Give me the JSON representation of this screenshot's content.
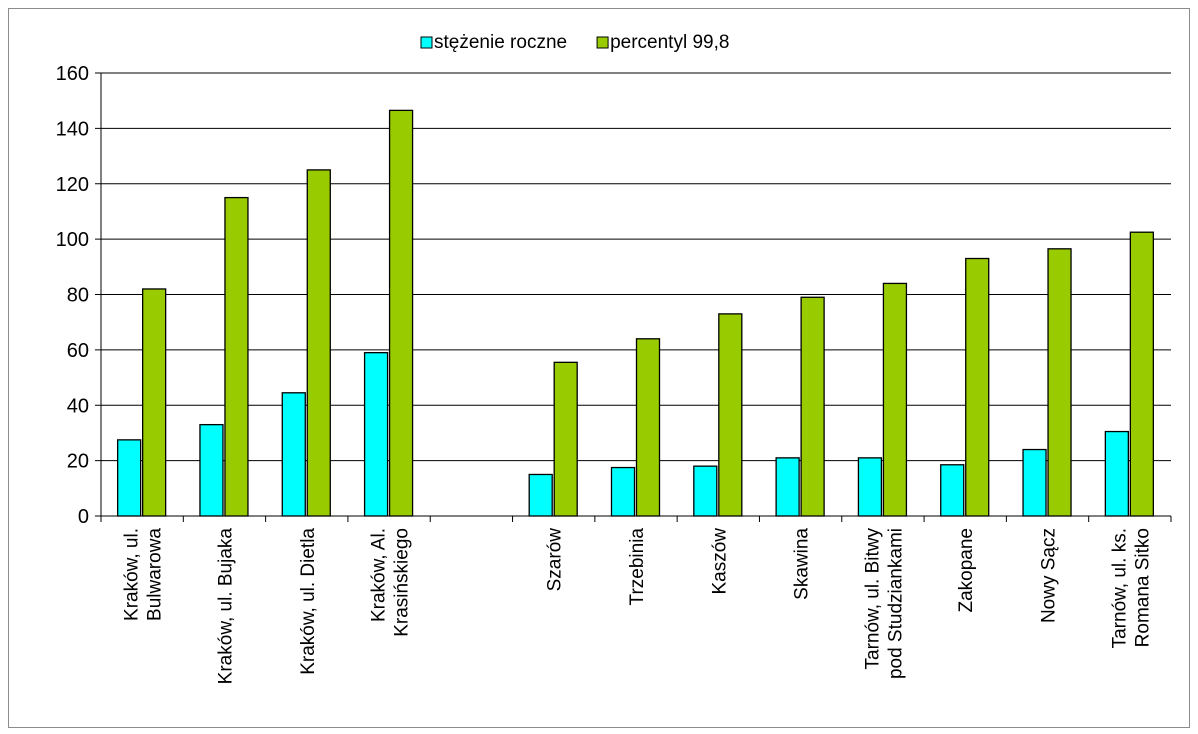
{
  "chart_data": {
    "type": "bar",
    "title": "",
    "xlabel": "",
    "ylabel": "",
    "ylim": [
      0,
      160
    ],
    "yticks": [
      0,
      20,
      40,
      60,
      80,
      100,
      120,
      140,
      160
    ],
    "grid": true,
    "legend_position": "top",
    "categories": [
      [
        "Kraków, ul.",
        "Bulwarowa"
      ],
      [
        "Kraków, ul. Bujaka"
      ],
      [
        "Kraków, ul. Dietla"
      ],
      [
        "Kraków, Al.",
        "Krasińskiego"
      ],
      [
        ""
      ],
      [
        "Szarów"
      ],
      [
        "Trzebinia"
      ],
      [
        "Kaszów"
      ],
      [
        "Skawina"
      ],
      [
        "Tarnów, ul. Bitwy",
        "pod Studziankami"
      ],
      [
        "Zakopane"
      ],
      [
        "Nowy Sącz"
      ],
      [
        "Tarnów, ul. ks.",
        "Romana Sitko"
      ]
    ],
    "series": [
      {
        "name": "stężenie roczne",
        "color": "#00ffff",
        "values": [
          27.5,
          33,
          44.5,
          59,
          null,
          15,
          17.5,
          18,
          21,
          21,
          18.5,
          24,
          30.5
        ]
      },
      {
        "name": "percentyl 99,8",
        "color": "#99cc00",
        "values": [
          82,
          115,
          125,
          146.5,
          null,
          55.5,
          64,
          73,
          79,
          84,
          93,
          96.5,
          102.5
        ]
      }
    ]
  }
}
